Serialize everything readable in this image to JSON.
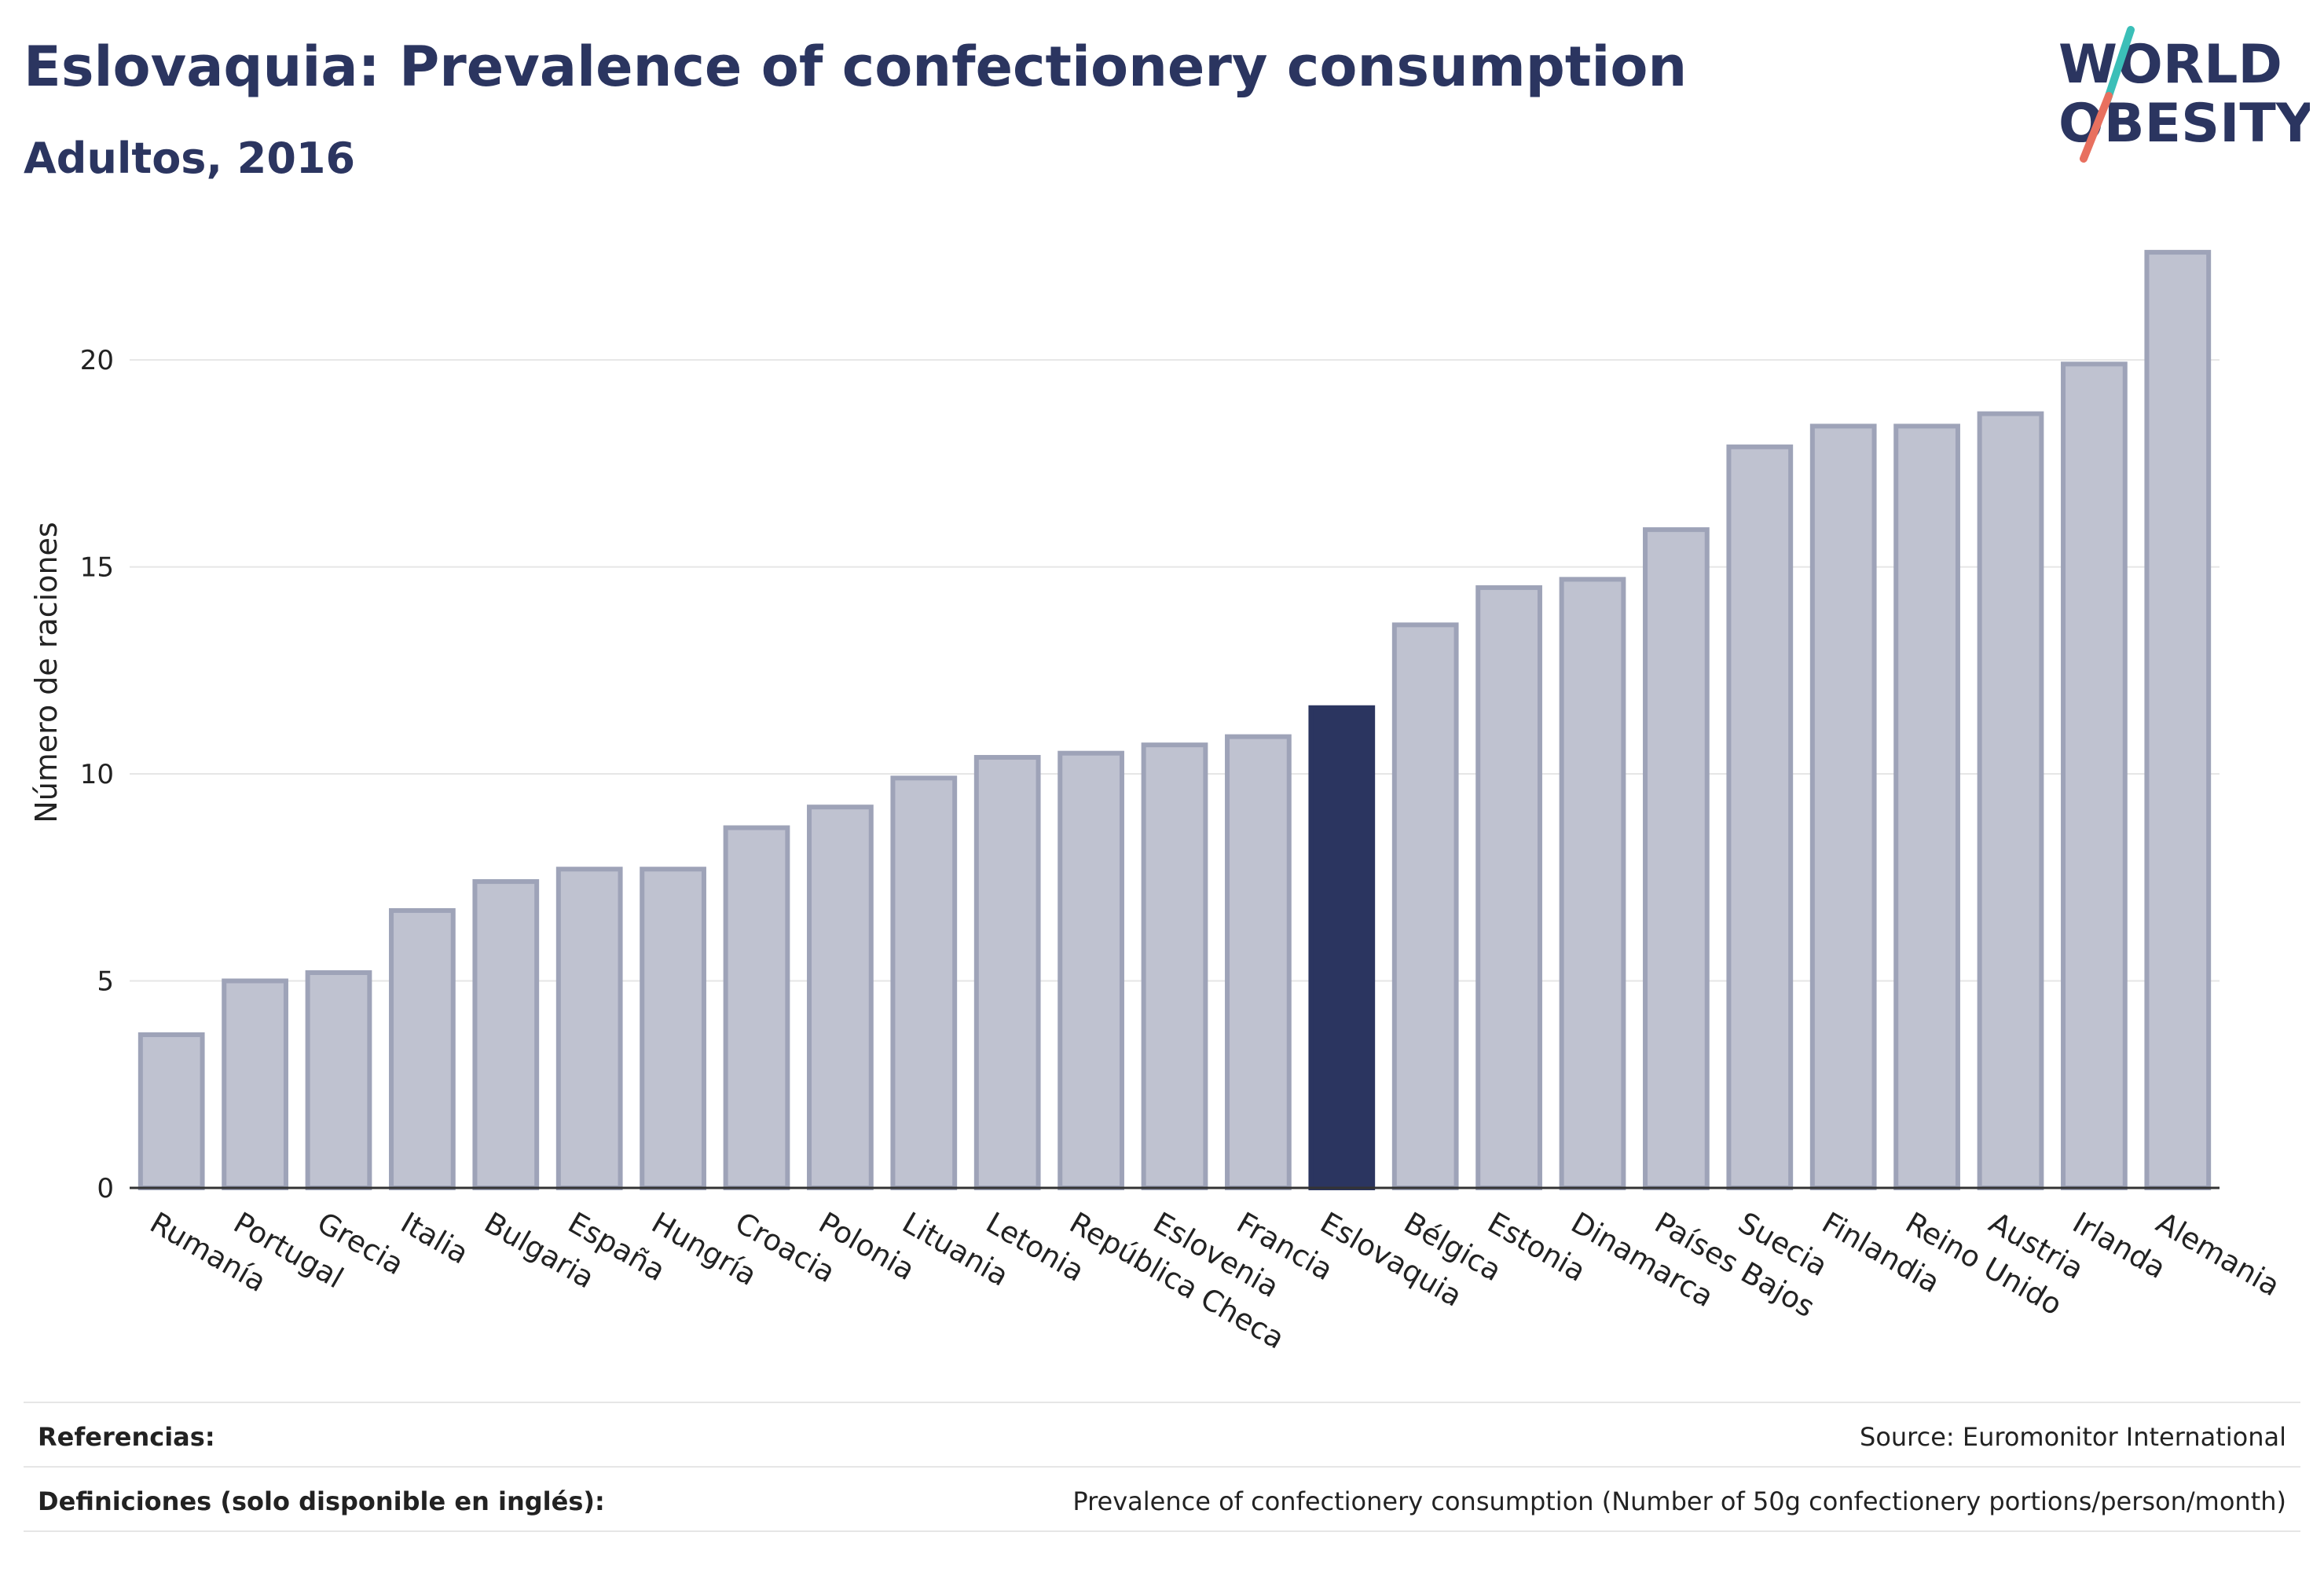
{
  "header": {
    "title": "Eslovaquia: Prevalence of confectionery consumption",
    "subtitle": "Adultos, 2016"
  },
  "logo": {
    "line1": "WORLD",
    "line2": "OBESITY"
  },
  "colors": {
    "bar": "#bfc2d0",
    "bar_border": "#9ea3b8",
    "highlight": "#2b3560",
    "grid": "#e6e6e6",
    "logo_teal": "#3bbfb8",
    "logo_coral": "#e8705f"
  },
  "chart_data": {
    "type": "bar",
    "title": "Eslovaquia: Prevalence of confectionery consumption",
    "subtitle": "Adultos, 2016",
    "xlabel": "",
    "ylabel": "Número de raciones",
    "ylim": [
      0,
      23
    ],
    "yticks": [
      0,
      5,
      10,
      15,
      20
    ],
    "grid": true,
    "highlight": "Eslovaquia",
    "categories": [
      "Rumanía",
      "Portugal",
      "Grecia",
      "Italia",
      "Bulgaria",
      "España",
      "Hungría",
      "Croacia",
      "Polonia",
      "Lituania",
      "Letonia",
      "República Checa",
      "Eslovenia",
      "Francia",
      "Eslovaquia",
      "Bélgica",
      "Estonia",
      "Dinamarca",
      "Países Bajos",
      "Suecia",
      "Finlandia",
      "Reino Unido",
      "Austria",
      "Irlanda",
      "Alemania"
    ],
    "values": [
      3.7,
      5.0,
      5.2,
      6.7,
      7.4,
      7.7,
      7.7,
      8.7,
      9.2,
      9.9,
      10.4,
      10.5,
      10.7,
      10.9,
      11.6,
      13.6,
      14.5,
      14.7,
      15.9,
      17.9,
      18.4,
      18.4,
      18.7,
      19.9,
      22.6
    ]
  },
  "footer": {
    "references_label": "Referencias:",
    "references_value": "Source: Euromonitor International",
    "definitions_label": "Definiciones (solo disponible en inglés):",
    "definitions_value": "Prevalence of confectionery consumption (Number of 50g confectionery portions/person/month)"
  }
}
